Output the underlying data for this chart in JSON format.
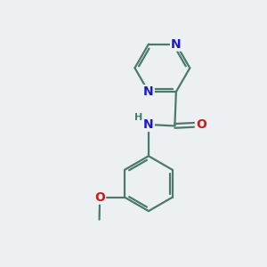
{
  "background_color": "#edf0f2",
  "bond_color": "#4a7a6a",
  "bond_width": 1.6,
  "atom_colors": {
    "N": "#1a1acc",
    "O": "#cc1a1a",
    "H": "#4a7a6a",
    "C": "#4a7a6a"
  },
  "font_size_atom": 10,
  "font_size_H": 8,
  "font_size_small": 9
}
